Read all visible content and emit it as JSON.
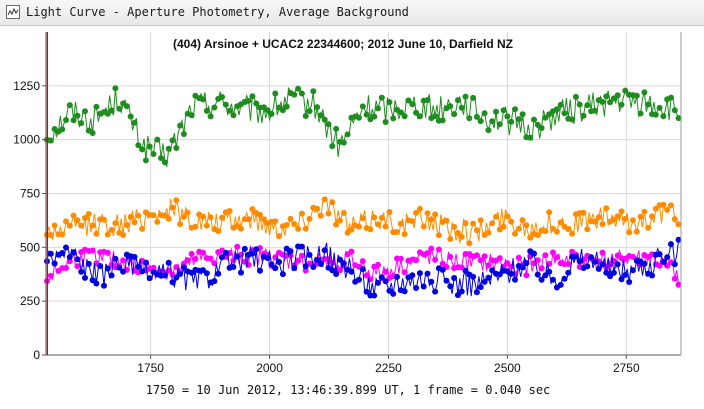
{
  "window": {
    "title": "Light Curve - Aperture Photometry, Average Background",
    "icon": "light-curve-app-icon"
  },
  "chart_data": {
    "type": "scatter",
    "title": "(404) Arsinoe + UCAC2 22344600;  2012 June 10,  Darfield  NZ",
    "xlabel": "1750 = 10 Jun 2012, 13:46:39.899 UT, 1 frame = 0.040 sec",
    "ylabel": "",
    "xlim": [
      1530,
      2865
    ],
    "ylim": [
      0,
      1500
    ],
    "x_ticks": [
      1750,
      2000,
      2250,
      2500,
      2750
    ],
    "y_ticks": [
      0,
      250,
      500,
      750,
      1000,
      1250
    ],
    "grid": true,
    "marker_line_x": 1533,
    "series": [
      {
        "color": "#1e8c1e",
        "base": 1100,
        "noise": 65,
        "values_sample": [
          930,
          1160,
          1080,
          1280,
          860,
          780,
          1200,
          1240,
          1180,
          1150,
          1260,
          1210,
          850,
          1190,
          1180,
          1220,
          1180,
          1240,
          1110,
          1070,
          1010,
          1150,
          1180,
          1240,
          1230,
          1210,
          1150
        ]
      },
      {
        "color": "#ff8c00",
        "base": 580,
        "noise": 55,
        "values_sample": [
          560,
          600,
          640,
          620,
          700,
          760,
          650,
          630,
          690,
          600,
          640,
          820,
          600,
          690,
          620,
          680,
          580,
          560,
          690,
          600,
          640,
          640,
          690,
          620,
          720,
          700
        ]
      },
      {
        "color": "#ff00ff",
        "base": 440,
        "noise": 45,
        "values_sample": [
          280,
          450,
          470,
          420,
          380,
          340,
          450,
          470,
          480,
          460,
          420,
          430,
          440,
          320,
          400,
          470,
          430,
          420,
          410,
          390,
          450,
          440,
          440,
          460,
          450,
          300
        ]
      },
      {
        "color": "#0000e0",
        "base": 430,
        "noise": 60,
        "values_sample": [
          470,
          520,
          300,
          430,
          320,
          330,
          260,
          400,
          470,
          420,
          480,
          500,
          350,
          210,
          280,
          300,
          260,
          250,
          340,
          440,
          290,
          460,
          390,
          370,
          430,
          550
        ]
      }
    ]
  }
}
